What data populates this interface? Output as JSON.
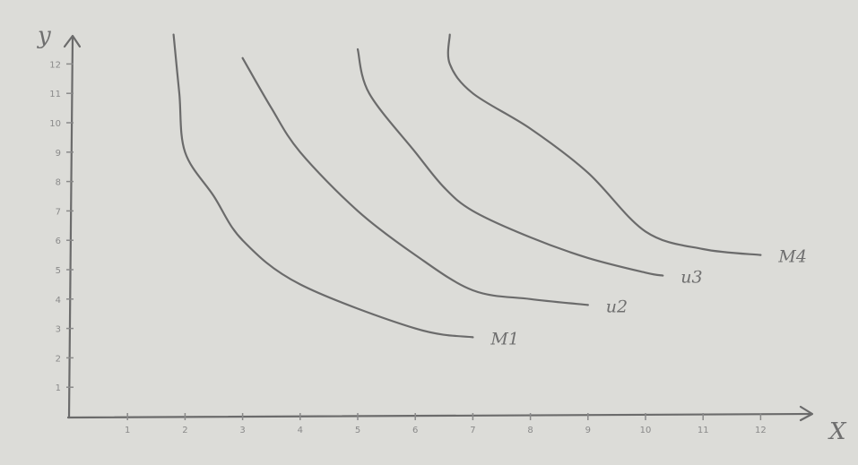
{
  "chart_data": {
    "type": "line",
    "title": "",
    "xlabel": "X",
    "ylabel": "y",
    "xlim": [
      0,
      13
    ],
    "ylim": [
      0,
      13
    ],
    "x_ticks": [
      "1",
      "2",
      "3",
      "4",
      "5",
      "6",
      "7",
      "8",
      "9",
      "10",
      "11",
      "12"
    ],
    "y_ticks": [
      "1",
      "2",
      "3",
      "4",
      "5",
      "6",
      "7",
      "8",
      "9",
      "10",
      "11",
      "12"
    ],
    "grid": false,
    "legend": "none",
    "ink_color": "#6b6b6b",
    "series": [
      {
        "name": "M1",
        "points": [
          [
            1.8,
            13
          ],
          [
            1.9,
            11
          ],
          [
            2,
            9
          ],
          [
            2.5,
            7.5
          ],
          [
            3,
            6
          ],
          [
            4,
            4.5
          ],
          [
            6,
            3
          ],
          [
            7,
            2.7
          ]
        ]
      },
      {
        "name": "u2",
        "points": [
          [
            3,
            12.2
          ],
          [
            3.5,
            10.5
          ],
          [
            4,
            9
          ],
          [
            5,
            7
          ],
          [
            6,
            5.5
          ],
          [
            7,
            4.3
          ],
          [
            8,
            4
          ],
          [
            9,
            3.8
          ]
        ]
      },
      {
        "name": "u3",
        "points": [
          [
            5,
            12.5
          ],
          [
            5.2,
            11
          ],
          [
            6,
            9
          ],
          [
            6.5,
            7.8
          ],
          [
            7,
            7
          ],
          [
            8,
            6.1
          ],
          [
            9,
            5.4
          ],
          [
            10,
            4.9
          ],
          [
            10.3,
            4.8
          ]
        ]
      },
      {
        "name": "M4",
        "points": [
          [
            6.6,
            13
          ],
          [
            6.6,
            12
          ],
          [
            7,
            11
          ],
          [
            8,
            9.8
          ],
          [
            9,
            8.3
          ],
          [
            10,
            6.3
          ],
          [
            11,
            5.7
          ],
          [
            12,
            5.5
          ]
        ]
      }
    ]
  }
}
